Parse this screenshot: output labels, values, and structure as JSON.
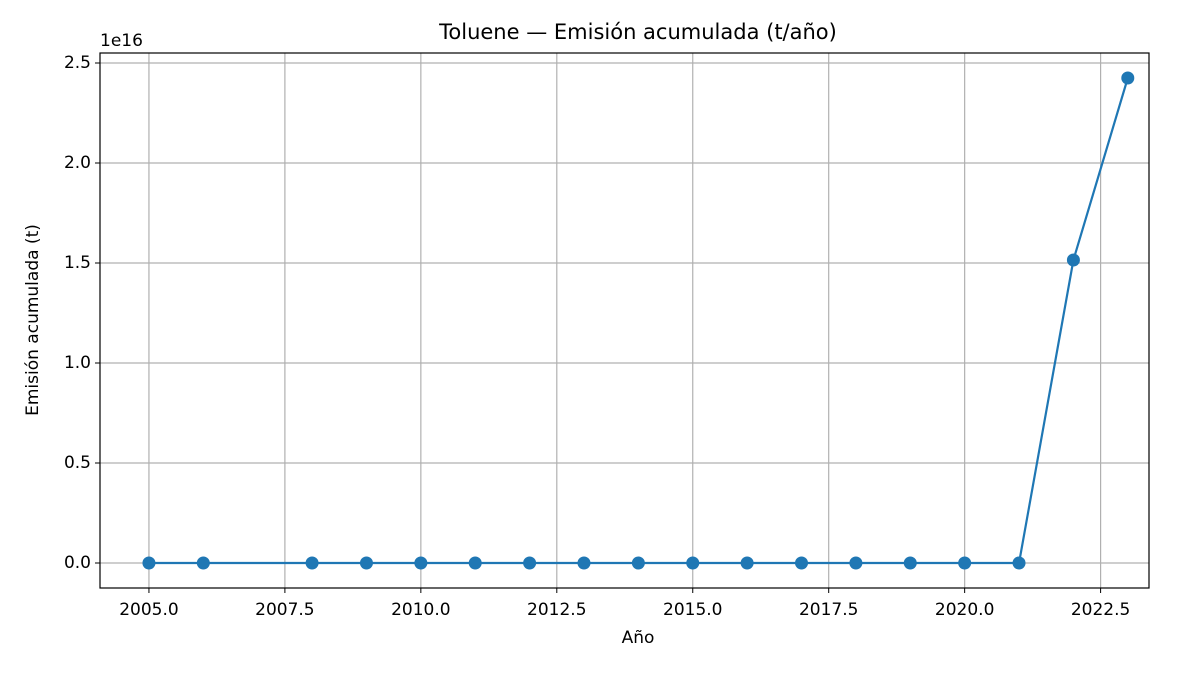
{
  "chart_data": {
    "type": "line",
    "title": "Toluene — Emisión acumulada (t/año)",
    "xlabel": "Año",
    "ylabel": "Emisión acumulada (t)",
    "y_offset_label": "1e16",
    "x": [
      2005,
      2006,
      2008,
      2009,
      2010,
      2011,
      2012,
      2013,
      2014,
      2015,
      2016,
      2017,
      2018,
      2019,
      2020,
      2021,
      2022,
      2023
    ],
    "series": [
      {
        "color": "#1f77b4",
        "values": [
          0,
          0,
          0,
          0,
          0,
          0,
          0,
          0,
          0,
          0,
          0,
          0,
          0,
          0,
          0,
          0,
          15150000000000000,
          24250000000000000
        ]
      }
    ],
    "xlim": [
      2004.1,
      2023.39
    ],
    "xticks": [
      {
        "value": 2005,
        "label": "2005.0"
      },
      2007.5,
      {
        "value": 2010,
        "label": "2010.0"
      },
      2012.5,
      {
        "value": 2015,
        "label": "2015.0"
      },
      2017.5,
      {
        "value": 2020,
        "label": "2020.0"
      },
      2022.5
    ],
    "ylim": [
      -1250000000000000,
      25500000000000000
    ],
    "yticks": [
      {
        "value": 0,
        "label": "0.0"
      },
      {
        "value": 5000000000000000,
        "label": "0.5"
      },
      {
        "value": 10000000000000000,
        "label": "1.0"
      },
      {
        "value": 15000000000000000,
        "label": "1.5"
      },
      {
        "value": 20000000000000000,
        "label": "2.0"
      },
      {
        "value": 25000000000000000,
        "label": "2.5"
      }
    ],
    "grid": true
  }
}
